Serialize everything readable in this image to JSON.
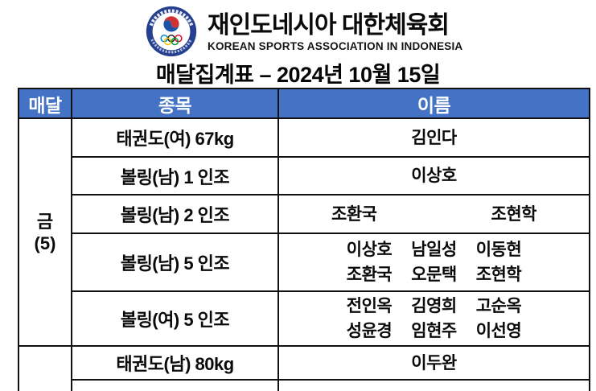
{
  "logo": {
    "name": "korean-sports-association-indonesia-emblem",
    "ring_color": "#26408f",
    "taegeuk_red": "#d23132",
    "taegeuk_blue": "#1c53a8",
    "olympic_ring_colors": [
      "#0085C7",
      "#1a1a1a",
      "#DF0024",
      "#F4C300",
      "#009F3D"
    ]
  },
  "header": {
    "org_name_ko": "재인도네시아 대한체육회",
    "org_name_en": "KOREAN SPORTS ASSOCIATION IN INDONESIA",
    "page_title": "매달집계표 – 2024년 10월 15일"
  },
  "table": {
    "header_bg": "#4472C4",
    "columns": [
      "매달",
      "종목",
      "이름"
    ],
    "sections": [
      {
        "medal": [
          "금",
          "(5)"
        ],
        "rows": [
          {
            "event": "태권도(여) 67kg",
            "name_lines": [
              [
                "김인다"
              ]
            ]
          },
          {
            "event": "볼링(남) 1 인조",
            "name_lines": [
              [
                "이상호"
              ]
            ]
          },
          {
            "event": "볼링(남) 2 인조",
            "name_lines": [
              [
                "조환국",
                "조현학"
              ]
            ]
          },
          {
            "event": "볼링(남) 5 인조",
            "name_lines": [
              [
                "이상호",
                "남일성",
                "이동현"
              ],
              [
                "조환국",
                "오문택",
                "조현학"
              ]
            ]
          },
          {
            "event": "볼링(여) 5 인조",
            "name_lines": [
              [
                "전인옥",
                "김영희",
                "고순옥"
              ],
              [
                "성윤경",
                "임현주",
                "이선영"
              ]
            ]
          }
        ]
      },
      {
        "medal": [],
        "rows": [
          {
            "event": "태권도(남) 80kg",
            "name_lines": [
              [
                "이두완"
              ]
            ]
          },
          {
            "event": "",
            "name_lines": []
          }
        ]
      }
    ]
  }
}
